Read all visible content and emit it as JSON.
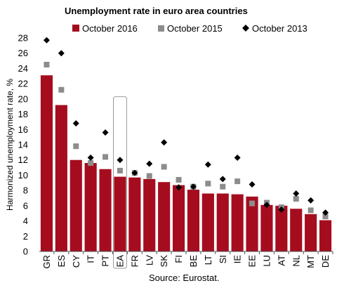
{
  "chart_data": {
    "type": "bar",
    "title": "Unemployment rate in euro area countries",
    "ylabel": "Harmonized unemployment rate, %",
    "source": "Source: Eurostat.",
    "ylim": [
      0,
      28
    ],
    "yticks": [
      0,
      2,
      4,
      6,
      8,
      10,
      12,
      14,
      16,
      18,
      20,
      22,
      24,
      26,
      28
    ],
    "grid": false,
    "legend_position": "top",
    "highlighted_category": "EA",
    "categories": [
      "GR",
      "ES",
      "CY",
      "IT",
      "PT",
      "EA",
      "FR",
      "LV",
      "SK",
      "FI",
      "BE",
      "LT",
      "SI",
      "IE",
      "EE",
      "LU",
      "AT",
      "NL",
      "MT",
      "DE"
    ],
    "series": [
      {
        "name": "October 2016",
        "kind": "bar",
        "color": "#a50d1f",
        "values": [
          23.1,
          19.2,
          12.0,
          11.6,
          10.8,
          9.8,
          9.7,
          9.5,
          9.1,
          8.7,
          8.1,
          7.6,
          7.6,
          7.5,
          7.2,
          6.1,
          6.0,
          5.6,
          4.9,
          4.1
        ]
      },
      {
        "name": "October 2015",
        "kind": "square",
        "color": "#8c8c8c",
        "values": [
          24.5,
          21.2,
          13.8,
          11.6,
          12.4,
          10.6,
          10.3,
          9.9,
          11.1,
          9.4,
          8.5,
          8.9,
          8.5,
          9.2,
          6.3,
          6.4,
          5.8,
          6.9,
          5.4,
          4.6
        ]
      },
      {
        "name": "October 2013",
        "kind": "diamond",
        "color": "#000000",
        "values": [
          27.7,
          26.0,
          16.8,
          12.3,
          15.6,
          12.0,
          10.3,
          11.5,
          14.3,
          8.4,
          8.5,
          11.4,
          9.5,
          12.3,
          8.8,
          6.1,
          5.5,
          7.6,
          6.7,
          5.1
        ]
      }
    ]
  }
}
